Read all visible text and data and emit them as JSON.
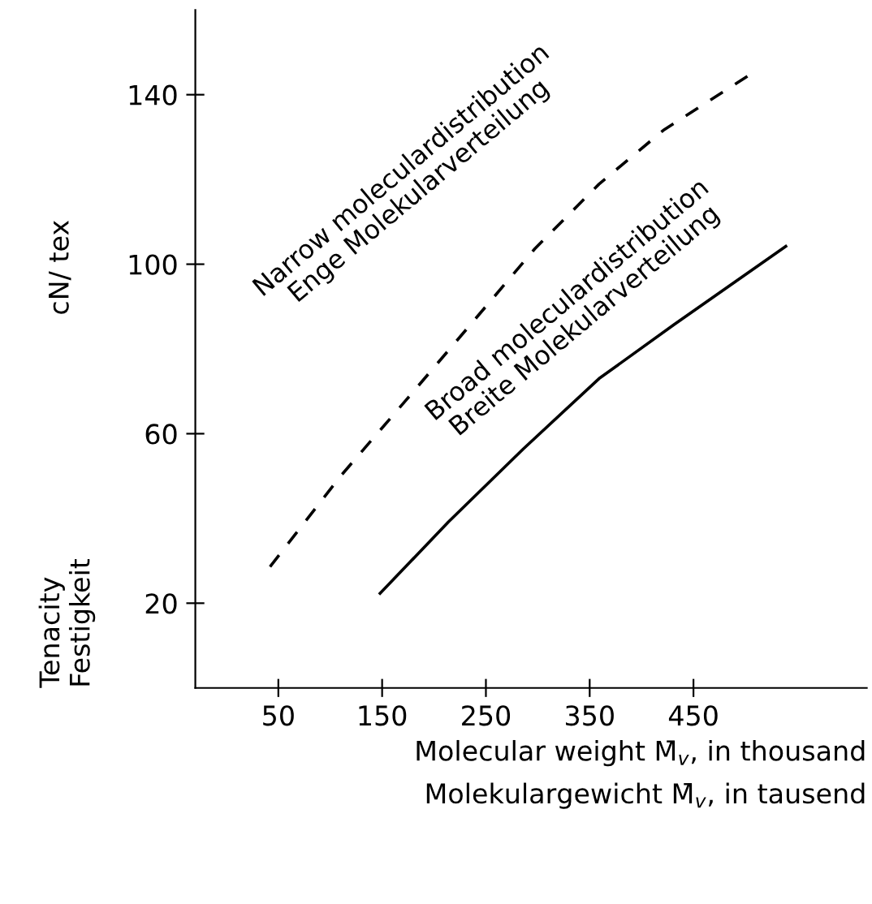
{
  "chart_data": {
    "type": "line",
    "xlabel": "Molecular weight M̄$_{v}$, in thousand\nMolekulargewicht M̄$_{v}$, in tausend",
    "ylabel": "Tenacity\nFestigkeit",
    "annotations": [
      "cN/ tex"
    ],
    "xlim": [
      -30,
      617
    ],
    "ylim": [
      0,
      160
    ],
    "xticks": [
      50,
      150,
      250,
      350,
      450
    ],
    "yticks": [
      20,
      60,
      100,
      140
    ],
    "grid": false,
    "legend": false,
    "series": [
      {
        "name": "Narrow moleculardistribution\nEnge Molekularverteilung",
        "color": "#000000",
        "line_style": "dashed",
        "x": [
          42,
          110,
          173,
          235,
          297,
          359,
          421,
          506
        ],
        "values": [
          28.6,
          50,
          67.9,
          85.7,
          103.6,
          118.9,
          131.6,
          145
        ]
      },
      {
        "name": "Broad moleculardistribution\nBreite Molekularverteilung",
        "color": "#000000",
        "line_style": "solid",
        "x": [
          148,
          214,
          286,
          359,
          431,
          539
        ],
        "values": [
          22.3,
          39.2,
          56.4,
          73,
          85.7,
          104.2
        ]
      }
    ]
  }
}
